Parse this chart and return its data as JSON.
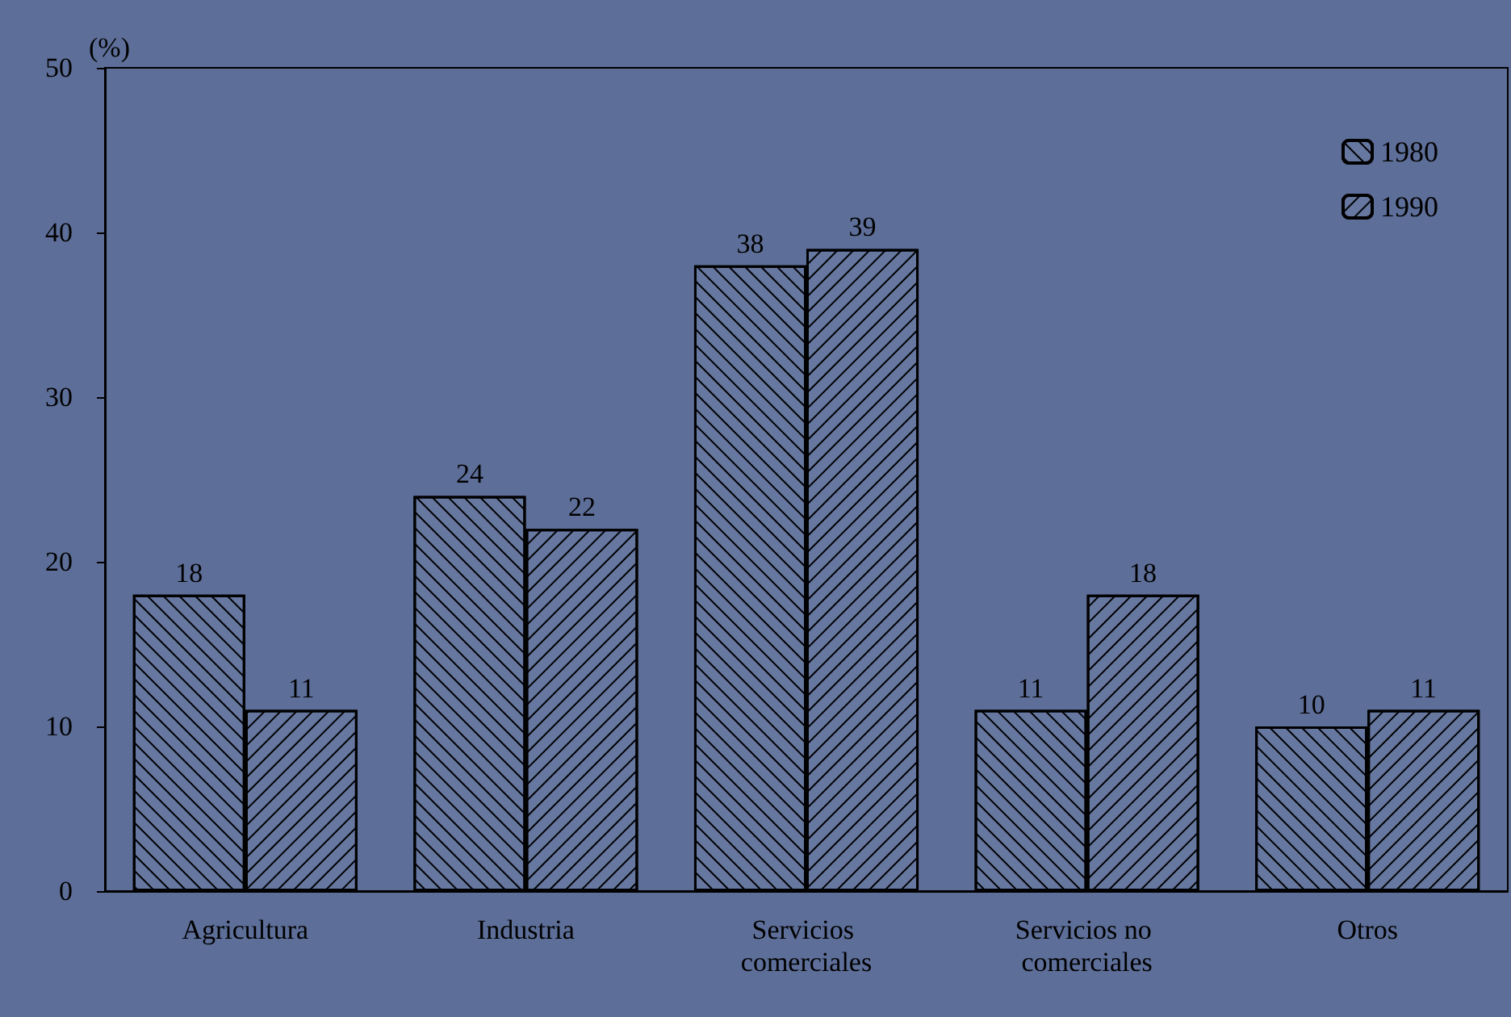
{
  "chart_data": {
    "type": "bar",
    "ylabel": "(%)",
    "categories": [
      "Agricultura",
      "Industria",
      "Servicios comerciales",
      "Servicios no comerciales",
      "Otros"
    ],
    "series": [
      {
        "name": "1980",
        "color": "#6677a0",
        "values": [
          18,
          24,
          38,
          11,
          10
        ]
      },
      {
        "name": "1990",
        "color": "#6677a0",
        "values": [
          11,
          22,
          39,
          18,
          11
        ]
      }
    ],
    "ylim": [
      0,
      50
    ],
    "yticks": [
      0,
      10,
      20,
      30,
      40,
      50
    ],
    "grid": false,
    "legend": "top right",
    "data_labels": true
  }
}
